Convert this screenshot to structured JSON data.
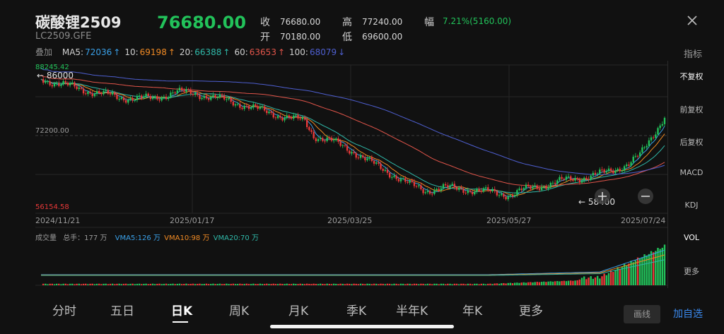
{
  "header": {
    "name": "碳酸锂2509",
    "code": "LC2509.GFE",
    "last_price": "76680.00",
    "quote": {
      "close_label": "收",
      "close_value": "76680.00",
      "open_label": "开",
      "open_value": "70180.00",
      "high_label": "高",
      "high_value": "77240.00",
      "low_label": "低",
      "low_value": "69600.00",
      "amp_label": "幅",
      "change_text": "7.21%(5160.00)"
    },
    "close_icon": "close-icon"
  },
  "ma_row": {
    "overlay_label": "叠加",
    "items": [
      {
        "label": "MA5:",
        "value": "72036",
        "arrow": "↑",
        "color": "#3aa0e8"
      },
      {
        "label": "10:",
        "value": "69198",
        "arrow": "↑",
        "color": "#f08a24"
      },
      {
        "label": "20:",
        "value": "66388",
        "arrow": "↑",
        "color": "#2fb8a8"
      },
      {
        "label": "60:",
        "value": "63653",
        "arrow": "↑",
        "color": "#e2554a"
      },
      {
        "label": "100:",
        "value": "68079",
        "arrow": "↓",
        "color": "#4e5fd0"
      }
    ]
  },
  "side_panel": {
    "indicator_label": "指标",
    "buttons": [
      {
        "label": "不复权",
        "active": true
      },
      {
        "label": "前复权",
        "active": false
      },
      {
        "label": "后复权",
        "active": false
      },
      {
        "label": "MACD",
        "active": false
      },
      {
        "label": "KDJ",
        "active": false
      },
      {
        "label": "VOL",
        "active": true
      },
      {
        "label": "更多",
        "active": false
      }
    ]
  },
  "chart_data": {
    "type": "candlestick",
    "y_axis_labels": {
      "top": "88245.42",
      "mid": "72200.00",
      "bottom": "56154.58"
    },
    "max_marker": "← 86000",
    "min_marker": "← 58400",
    "x_labels": [
      "2024/11/21",
      "2025/01/17",
      "2025/03/25",
      "2025/05/27",
      "2025/07/24"
    ],
    "ylim": [
      56154.58,
      88245.42
    ],
    "volume": {
      "label": "成交量",
      "total_label": "总手：177 万",
      "vma5": "VMA5:126 万",
      "vma10": "VMA10:98 万",
      "vma20": "VMA20:70 万"
    },
    "zoom_in_icon": "plus-icon",
    "zoom_out_icon": "minus-icon"
  },
  "colors": {
    "up": "#22c25a",
    "down": "#e83838",
    "ma5": "#3aa0e8",
    "ma10": "#f08a24",
    "ma20": "#2fb8a8",
    "ma60": "#e2554a",
    "ma100": "#4e5fd0"
  },
  "bottom_tabs": [
    {
      "label": "分时",
      "active": false
    },
    {
      "label": "五日",
      "active": false
    },
    {
      "label": "日K",
      "active": true
    },
    {
      "label": "周K",
      "active": false
    },
    {
      "label": "月K",
      "active": false
    },
    {
      "label": "季K",
      "active": false
    },
    {
      "label": "半年K",
      "active": false
    },
    {
      "label": "年K",
      "active": false
    },
    {
      "label": "更多",
      "active": false
    }
  ],
  "footer": {
    "draw_label": "画线",
    "watchlist_label": "加自选"
  }
}
